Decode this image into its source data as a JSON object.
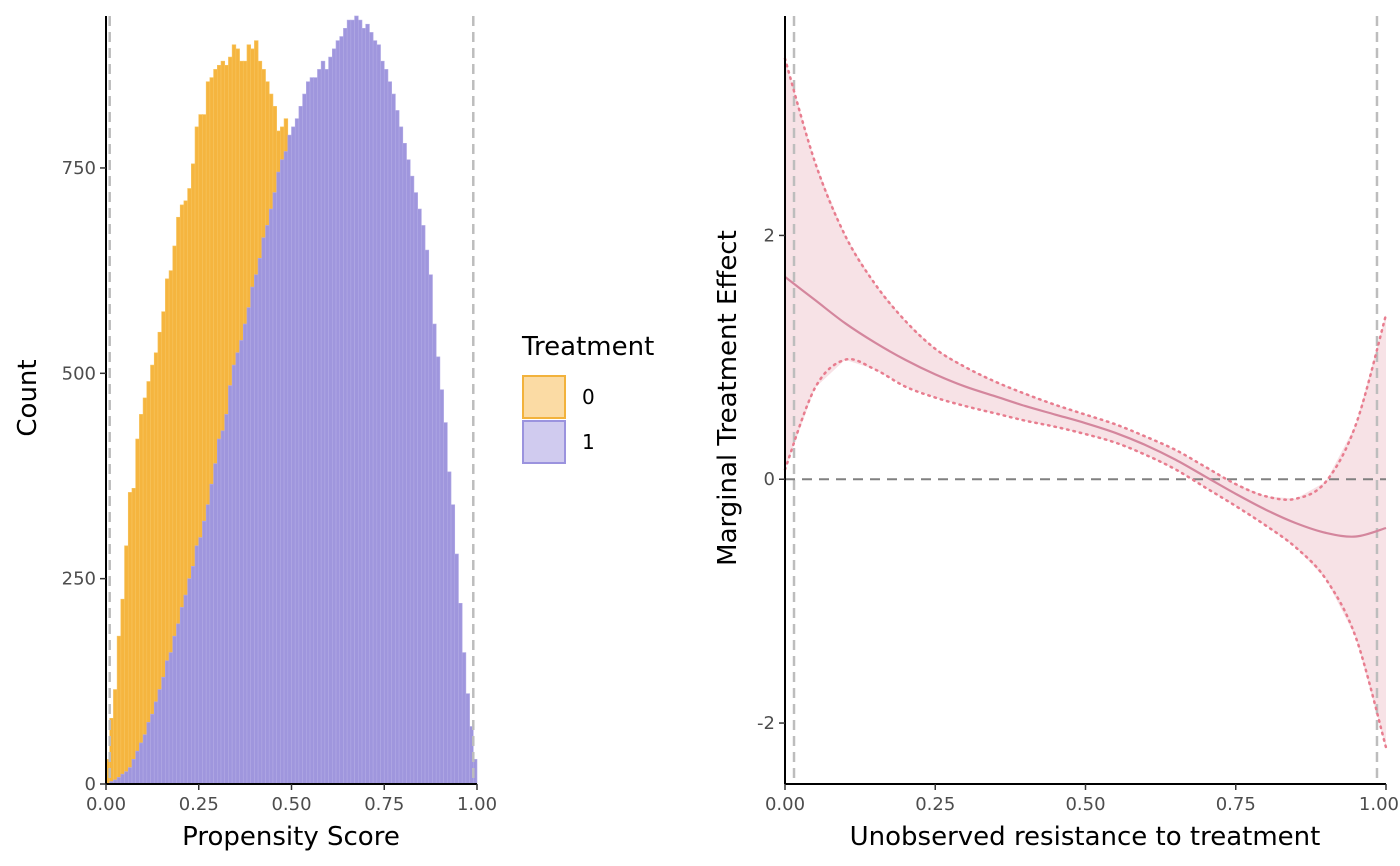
{
  "chart_data": [
    {
      "type": "bar",
      "subtype": "histogram",
      "xlabel": "Propensity Score",
      "ylabel": "Count",
      "xlim": [
        0,
        1
      ],
      "ylim": [
        0,
        935
      ],
      "x_ticks": [
        "0.00",
        "0.25",
        "0.50",
        "0.75",
        "1.00"
      ],
      "y_ticks": [
        "0",
        "250",
        "500",
        "750"
      ],
      "grid": false,
      "support_bounds": [
        0.01,
        0.99
      ],
      "bin_width": 0.01,
      "bin_start": 0.0,
      "legend": {
        "title": "Treatment",
        "placement": "right",
        "items": [
          {
            "label": "0",
            "fill": "#fbdba4",
            "stroke": "#f2b23c"
          },
          {
            "label": "1",
            "fill": "#d0cbef",
            "stroke": "#9b93de"
          }
        ]
      },
      "series": [
        {
          "name": "0",
          "fill": "#f5b53f",
          "stroke": "#f7c45e",
          "values": [
            30,
            80,
            115,
            180,
            225,
            290,
            355,
            360,
            420,
            450,
            470,
            490,
            510,
            525,
            550,
            575,
            615,
            625,
            655,
            690,
            705,
            710,
            725,
            755,
            800,
            815,
            815,
            855,
            860,
            870,
            875,
            880,
            875,
            885,
            900,
            895,
            880,
            880,
            900,
            895,
            905,
            880,
            870,
            855,
            840,
            825,
            795,
            800,
            810,
            770,
            720,
            680,
            660,
            630,
            615,
            580,
            545,
            515,
            470,
            445,
            415,
            380,
            340,
            305,
            265,
            230,
            200,
            165,
            135,
            105,
            85,
            65,
            45,
            30,
            20,
            12,
            8,
            5,
            3,
            2,
            1,
            0,
            0,
            0,
            0,
            0,
            0,
            0,
            0,
            0,
            0,
            0,
            0,
            0,
            0,
            0,
            0,
            0,
            0,
            0
          ]
        },
        {
          "name": "1",
          "fill": "#9f96dd",
          "stroke": "#b2aae5",
          "values": [
            0,
            3,
            5,
            8,
            12,
            15,
            20,
            30,
            40,
            50,
            60,
            75,
            85,
            100,
            115,
            130,
            150,
            160,
            180,
            195,
            215,
            230,
            250,
            265,
            290,
            300,
            320,
            340,
            365,
            390,
            420,
            430,
            450,
            485,
            510,
            525,
            540,
            560,
            580,
            605,
            620,
            640,
            665,
            680,
            700,
            720,
            745,
            760,
            770,
            790,
            800,
            810,
            825,
            840,
            855,
            860,
            860,
            870,
            880,
            870,
            885,
            895,
            905,
            910,
            920,
            930,
            930,
            935,
            930,
            920,
            925,
            915,
            905,
            900,
            880,
            870,
            855,
            840,
            820,
            800,
            780,
            760,
            740,
            720,
            700,
            680,
            650,
            620,
            560,
            520,
            480,
            440,
            380,
            340,
            280,
            220,
            160,
            110,
            70,
            30
          ]
        }
      ]
    },
    {
      "type": "line",
      "xlabel": "Unobserved resistance to treatment",
      "ylabel": "Marginal Treatment Effect",
      "xlim": [
        0,
        1
      ],
      "ylim": [
        -2.5,
        3.8
      ],
      "x_ticks": [
        "0.00",
        "0.25",
        "0.50",
        "0.75",
        "1.00"
      ],
      "y_ticks": [
        "-2",
        "0",
        "2"
      ],
      "grid": false,
      "reference_line_y": 0,
      "support_bounds": [
        0.015,
        0.985
      ],
      "colors": {
        "line": "#d4869d",
        "band": "#f7e2e6",
        "ci": "#e87d8f"
      },
      "series": [
        {
          "name": "mte",
          "x": [
            0.0,
            0.05,
            0.1,
            0.15,
            0.2,
            0.25,
            0.3,
            0.35,
            0.4,
            0.45,
            0.5,
            0.55,
            0.6,
            0.65,
            0.7,
            0.75,
            0.8,
            0.85,
            0.9,
            0.95,
            1.0
          ],
          "y": [
            1.66,
            1.47,
            1.28,
            1.12,
            0.98,
            0.86,
            0.76,
            0.68,
            0.6,
            0.53,
            0.46,
            0.38,
            0.28,
            0.16,
            0.02,
            -0.12,
            -0.25,
            -0.36,
            -0.44,
            -0.47,
            -0.4
          ]
        },
        {
          "name": "ci_upper",
          "x": [
            0.0,
            0.05,
            0.1,
            0.15,
            0.2,
            0.25,
            0.3,
            0.35,
            0.4,
            0.45,
            0.5,
            0.55,
            0.6,
            0.65,
            0.7,
            0.75,
            0.8,
            0.85,
            0.9,
            0.95,
            1.0
          ],
          "y": [
            3.45,
            2.6,
            2.0,
            1.6,
            1.3,
            1.07,
            0.92,
            0.8,
            0.7,
            0.61,
            0.53,
            0.45,
            0.35,
            0.24,
            0.1,
            -0.04,
            -0.14,
            -0.16,
            -0.02,
            0.45,
            1.35
          ]
        },
        {
          "name": "ci_lower",
          "x": [
            0.0,
            0.05,
            0.1,
            0.15,
            0.2,
            0.25,
            0.3,
            0.35,
            0.4,
            0.45,
            0.5,
            0.55,
            0.6,
            0.65,
            0.7,
            0.75,
            0.8,
            0.85,
            0.9,
            0.95,
            1.0
          ],
          "y": [
            0.08,
            0.75,
            0.98,
            0.9,
            0.76,
            0.67,
            0.6,
            0.54,
            0.48,
            0.43,
            0.37,
            0.3,
            0.2,
            0.08,
            -0.07,
            -0.22,
            -0.38,
            -0.56,
            -0.82,
            -1.3,
            -2.2
          ]
        }
      ]
    }
  ]
}
